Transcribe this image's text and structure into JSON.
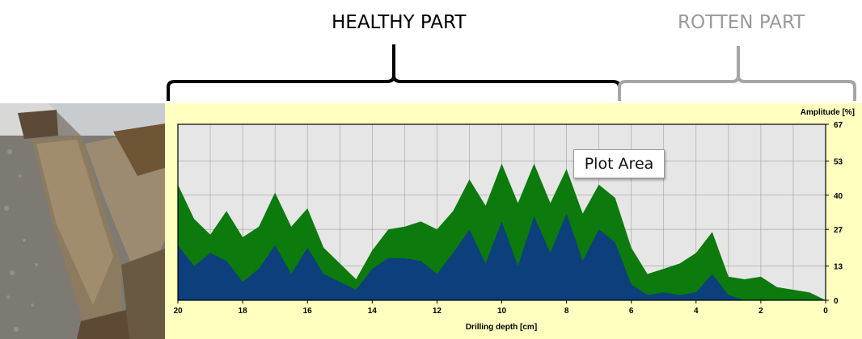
{
  "annotations": {
    "healthy_label": "HEALTHY PART",
    "rotten_label": "ROTTEN PART",
    "tooltip": "Plot Area"
  },
  "photo": {
    "subject": "decayed wooden beams on gravel"
  },
  "colors": {
    "panel_background": "#ffffc0",
    "plot_background": "#e6e6e6",
    "feed_series": "#0c7a0c",
    "drill_series": "#0d3f7c",
    "healthy_bracket": "#000000",
    "rotten_bracket": "#a6a6a6"
  },
  "chart_data": {
    "type": "area",
    "xlabel": "Drilling depth [cm]",
    "ylabel": "Amplitude [%]",
    "xlim": [
      20,
      0
    ],
    "ylim": [
      0,
      67
    ],
    "x_reversed": true,
    "grid": true,
    "x_ticks": [
      "20",
      "18",
      "16",
      "14",
      "12",
      "10",
      "8",
      "6",
      "4",
      "2",
      "0"
    ],
    "y_ticks": [
      "67",
      "53",
      "40",
      "27",
      "13",
      "0"
    ],
    "x": [
      20,
      19.5,
      19,
      18.5,
      18,
      17.5,
      17,
      16.5,
      16,
      15.5,
      15,
      14.5,
      14,
      13.5,
      13,
      12.5,
      12,
      11.5,
      11,
      10.5,
      10,
      9.5,
      9,
      8.5,
      8,
      7.5,
      7,
      6.5,
      6,
      5.5,
      5,
      4.5,
      4,
      3.5,
      3,
      2.5,
      2,
      1.5,
      1,
      0.5,
      0
    ],
    "series": [
      {
        "values": [
          44,
          31,
          25,
          34,
          24,
          28,
          41,
          28,
          35,
          20,
          14,
          8,
          19,
          27,
          28,
          30,
          27,
          34,
          46,
          36,
          52,
          37,
          52,
          37,
          50,
          33,
          44,
          39,
          20,
          10,
          12,
          14,
          18,
          26,
          9,
          8,
          9,
          5,
          4,
          3,
          0
        ]
      },
      {
        "values": [
          21,
          13,
          18,
          15,
          7,
          12,
          21,
          10,
          20,
          10,
          7,
          4,
          12,
          16,
          16,
          15,
          10,
          18,
          27,
          14,
          30,
          13,
          32,
          18,
          33,
          15,
          27,
          22,
          6,
          2,
          3,
          2,
          3,
          10,
          2,
          0,
          0,
          0,
          0,
          0,
          0
        ]
      }
    ]
  }
}
